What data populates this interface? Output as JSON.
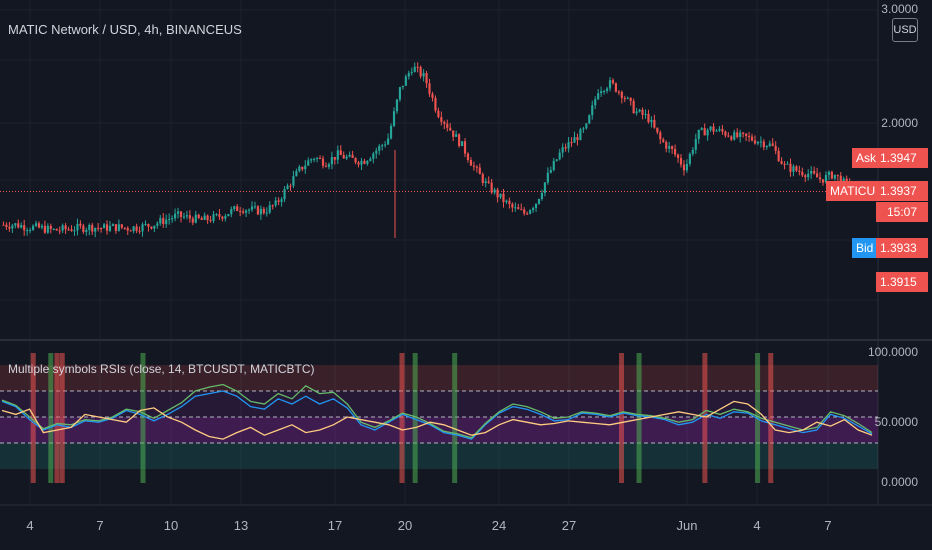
{
  "header": {
    "title": "MATIC Network / USD, 4h, BINANCEUS",
    "currency_button": "USD"
  },
  "indicator": {
    "title": "Multiple symbols RSIs (close, 14, BTCUSDT, MATICBTC)"
  },
  "price_axis": {
    "labels": [
      "3.0000",
      "2.0000"
    ]
  },
  "indicator_axis": {
    "labels": [
      "100.0000",
      "50.0000",
      "0.0000"
    ]
  },
  "price_tags": {
    "ask_label": "Ask",
    "ask_value": "1.3947",
    "symbol_label": "MATICUSD",
    "symbol_value": "1.3937",
    "countdown": "15:07",
    "bid_label": "Bid",
    "bid_value": "1.3933",
    "low_value": "1.3915"
  },
  "x_axis": {
    "ticks": [
      "4",
      "7",
      "10",
      "13",
      "17",
      "20",
      "24",
      "27",
      "Jun",
      "4",
      "7"
    ]
  },
  "colors": {
    "background": "#131722",
    "up": "#26a69a",
    "down": "#ef5350",
    "rsi_blue": "#2196f3",
    "rsi_green": "#66bb6a",
    "rsi_orange": "#ffcc80",
    "rsi_grey": "#9e9e9e"
  },
  "chart_data": {
    "type": "candlestick",
    "price_y_ticks": [
      3.0,
      2.0
    ],
    "current_price": 1.3937,
    "close_path": [
      1.1,
      1.1,
      1.08,
      1.07,
      1.05,
      1.06,
      1.07,
      1.08,
      1.07,
      1.08,
      1.07,
      1.08,
      1.1,
      1.14,
      1.18,
      1.16,
      1.14,
      1.16,
      1.2,
      1.25,
      1.23,
      1.22,
      1.28,
      1.45,
      1.6,
      1.7,
      1.65,
      1.72,
      1.68,
      1.66,
      1.75,
      1.85,
      2.3,
      2.5,
      2.4,
      2.1,
      1.95,
      1.8,
      1.6,
      1.45,
      1.35,
      1.25,
      1.2,
      1.3,
      1.55,
      1.75,
      1.85,
      1.95,
      2.3,
      2.35,
      2.25,
      2.1,
      2.05,
      1.85,
      1.75,
      1.6,
      1.9,
      1.95,
      1.92,
      1.88,
      1.87,
      1.84,
      1.8,
      1.62,
      1.58,
      1.55,
      1.5,
      1.55,
      1.45,
      1.42
    ],
    "rsi_bands": {
      "upper": 70,
      "middle": 50,
      "lower": 30
    },
    "rsi_series": [
      {
        "color": "#2196f3",
        "values": [
          62,
          58,
          48,
          40,
          44,
          42,
          47,
          46,
          49,
          55,
          52,
          47,
          52,
          58,
          66,
          68,
          70,
          66,
          58,
          56,
          64,
          60,
          66,
          60,
          64,
          57,
          44,
          40,
          46,
          52,
          48,
          44,
          38,
          36,
          33,
          44,
          53,
          58,
          56,
          52,
          47,
          48,
          53,
          52,
          50,
          53,
          51,
          50,
          48,
          44,
          46,
          52,
          49,
          54,
          53,
          47,
          44,
          41,
          38,
          40,
          52,
          49,
          43,
          37
        ]
      },
      {
        "color": "#66bb6a",
        "values": [
          63,
          59,
          50,
          41,
          45,
          44,
          48,
          47,
          50,
          56,
          54,
          49,
          55,
          61,
          70,
          73,
          75,
          70,
          62,
          60,
          68,
          64,
          74,
          68,
          69,
          60,
          46,
          42,
          47,
          53,
          50,
          45,
          39,
          37,
          34,
          45,
          54,
          60,
          58,
          54,
          49,
          50,
          54,
          53,
          51,
          54,
          52,
          51,
          49,
          46,
          48,
          55,
          52,
          56,
          54,
          49,
          46,
          43,
          40,
          42,
          54,
          51,
          45,
          38
        ]
      },
      {
        "color": "#ffcc80",
        "values": [
          55,
          52,
          56,
          38,
          40,
          42,
          52,
          50,
          48,
          46,
          55,
          57,
          50,
          46,
          40,
          35,
          33,
          38,
          42,
          36,
          40,
          44,
          38,
          40,
          44,
          50,
          48,
          46,
          44,
          40,
          42,
          46,
          44,
          40,
          36,
          38,
          44,
          48,
          46,
          44,
          45,
          47,
          46,
          45,
          44,
          46,
          48,
          50,
          52,
          54,
          52,
          50,
          56,
          62,
          60,
          52,
          40,
          38,
          40,
          46,
          43,
          48,
          40,
          36
        ]
      }
    ],
    "signal_bars": [
      {
        "x": 0.035,
        "color": "red"
      },
      {
        "x": 0.055,
        "color": "green"
      },
      {
        "x": 0.062,
        "color": "red"
      },
      {
        "x": 0.068,
        "color": "red"
      },
      {
        "x": 0.16,
        "color": "green"
      },
      {
        "x": 0.455,
        "color": "red"
      },
      {
        "x": 0.47,
        "color": "green"
      },
      {
        "x": 0.515,
        "color": "green"
      },
      {
        "x": 0.705,
        "color": "red"
      },
      {
        "x": 0.725,
        "color": "green"
      },
      {
        "x": 0.8,
        "color": "red"
      },
      {
        "x": 0.86,
        "color": "green"
      },
      {
        "x": 0.875,
        "color": "red"
      }
    ]
  }
}
